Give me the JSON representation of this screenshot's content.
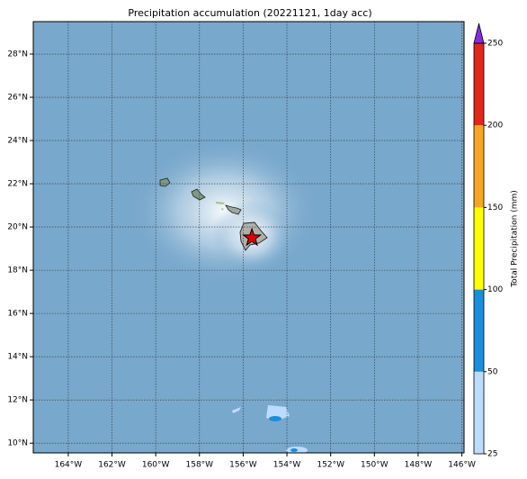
{
  "chart_data": {
    "type": "map",
    "title": "Precipitation accumulation (20221121, 1day acc)",
    "xlim": [
      -165.6,
      -145.9
    ],
    "ylim": [
      9.55,
      29.5
    ],
    "xticks": [
      {
        "value": -164,
        "label": "164°W"
      },
      {
        "value": -162,
        "label": "162°W"
      },
      {
        "value": -160,
        "label": "160°W"
      },
      {
        "value": -158,
        "label": "158°W"
      },
      {
        "value": -156,
        "label": "156°W"
      },
      {
        "value": -154,
        "label": "154°W"
      },
      {
        "value": -152,
        "label": "152°W"
      },
      {
        "value": -150,
        "label": "150°W"
      },
      {
        "value": -148,
        "label": "148°W"
      },
      {
        "value": -146,
        "label": "146°W"
      }
    ],
    "yticks": [
      {
        "value": 10,
        "label": "10°N"
      },
      {
        "value": 12,
        "label": "12°N"
      },
      {
        "value": 14,
        "label": "14°N"
      },
      {
        "value": 16,
        "label": "16°N"
      },
      {
        "value": 18,
        "label": "18°N"
      },
      {
        "value": 20,
        "label": "20°N"
      },
      {
        "value": 22,
        "label": "22°N"
      },
      {
        "value": 24,
        "label": "24°N"
      },
      {
        "value": 26,
        "label": "26°N"
      },
      {
        "value": 28,
        "label": "28°N"
      }
    ],
    "grid": true,
    "station": {
      "lon": -155.6,
      "lat": 19.5,
      "color": "#e00000"
    },
    "colorbar": {
      "label": "Total Precipitation (mm)",
      "levels": [
        25,
        50,
        100,
        150,
        200,
        250
      ],
      "colors": [
        "#bcdcff",
        "#1a8ede",
        "#ffff00",
        "#f5a623",
        "#e2261a"
      ],
      "extend_color": "#8a2be2"
    }
  }
}
